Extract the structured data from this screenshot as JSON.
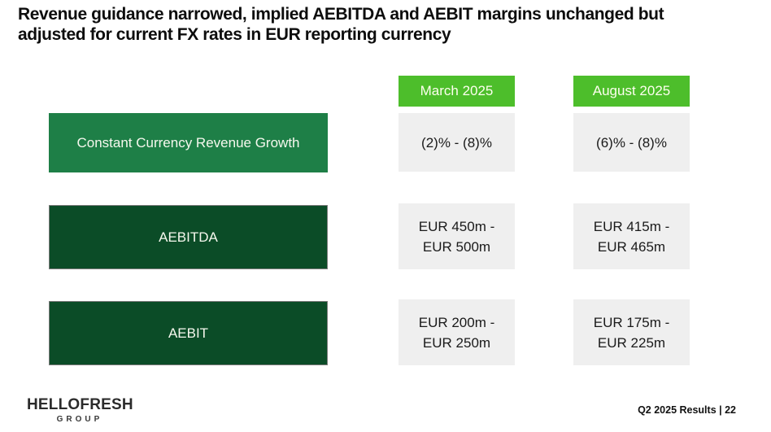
{
  "slide": {
    "title": "Revenue guidance narrowed, implied AEBITDA and AEBIT margins unchanged but adjusted for current FX rates in EUR reporting currency"
  },
  "table": {
    "column_headers": [
      "March 2025",
      "August 2025"
    ],
    "rows": [
      {
        "label": "Constant Currency Revenue Growth",
        "march": "(2)% - (8)%",
        "august": "(6)% - (8)%"
      },
      {
        "label": "AEBITDA",
        "march": "EUR 450m -\nEUR 500m",
        "august": "EUR 415m -\nEUR 465m"
      },
      {
        "label": "AEBIT",
        "march": "EUR 200m -\nEUR 250m",
        "august": "EUR 175m -\nEUR 225m"
      }
    ]
  },
  "footer": {
    "logo_line1": "HELLOFRESH",
    "logo_line2": "GROUP",
    "page_label": "Q2 2025 Results | 22"
  },
  "colors": {
    "header_badge_green": "#4dbe2b",
    "row_label_green": "#1e7f47",
    "row_label_dark_green": "#0b4c27",
    "value_cell_gray": "#efefef",
    "title_black": "#0d0d0d"
  }
}
